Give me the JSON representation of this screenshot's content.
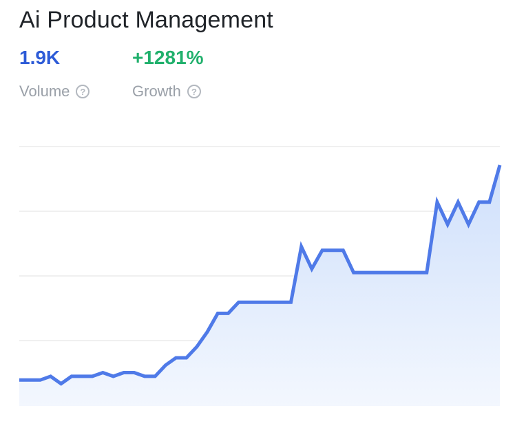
{
  "title": "Ai Product Management",
  "metrics": {
    "volume": {
      "value": "1.9K",
      "label": "Volume"
    },
    "growth": {
      "value": "+1281%",
      "label": "Growth"
    }
  },
  "icons": {
    "help": "question-circle-icon"
  },
  "colors": {
    "line": "#4f7ae8",
    "fill_top": "#cfe0fb",
    "fill_bottom": "#f3f7fe",
    "grid": "#ececec",
    "volume": "#2d5bd7",
    "growth": "#20b06c"
  },
  "chart_data": {
    "type": "area",
    "title": "Ai Product Management",
    "xlabel": "",
    "ylabel": "",
    "grid": true,
    "x": [
      0,
      1,
      2,
      3,
      4,
      5,
      6,
      7,
      8,
      9,
      10,
      11,
      12,
      13,
      14,
      15,
      16,
      17,
      18,
      19,
      20,
      21,
      22,
      23,
      24,
      25,
      26,
      27,
      28,
      29,
      30,
      31,
      32,
      33,
      34,
      35,
      36,
      37,
      38,
      39,
      40,
      41,
      42,
      43,
      44,
      45,
      46
    ],
    "values": [
      7,
      7,
      7,
      8,
      6,
      8,
      8,
      8,
      9,
      8,
      9,
      9,
      8,
      8,
      11,
      13,
      13,
      16,
      20,
      25,
      25,
      28,
      28,
      28,
      28,
      28,
      28,
      43,
      37,
      42,
      42,
      42,
      36,
      36,
      36,
      36,
      36,
      36,
      36,
      36,
      55,
      49,
      55,
      49,
      55,
      55,
      65
    ],
    "ylim": [
      0,
      70
    ]
  }
}
